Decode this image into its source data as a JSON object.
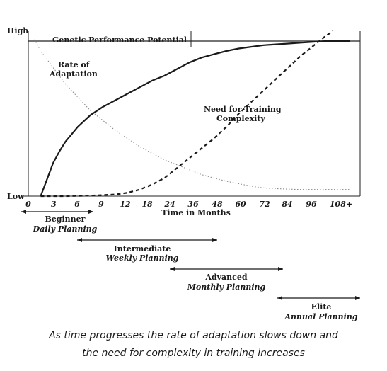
{
  "chart_data": {
    "type": "line",
    "y_axis": {
      "top_label": "High",
      "bottom_label": "Low"
    },
    "x_axis": {
      "label": "Time in Months",
      "ticks": [
        "0",
        "3",
        "6",
        "9",
        "12",
        "18",
        "24",
        "36",
        "48",
        "60",
        "72",
        "84",
        "96",
        "108+"
      ]
    },
    "reference_line": {
      "label": "Genetic Performance Potential",
      "level": 0.94
    },
    "series": [
      {
        "name": "Rate of Adaptation",
        "label_lines": [
          "Rate of",
          "Adaptation"
        ],
        "style": "solid",
        "points": [
          [
            1,
            0.0
          ],
          [
            1.5,
            0.1
          ],
          [
            2,
            0.2
          ],
          [
            2.5,
            0.27
          ],
          [
            3,
            0.33
          ],
          [
            4,
            0.42
          ],
          [
            5,
            0.49
          ],
          [
            6,
            0.54
          ],
          [
            7,
            0.58
          ],
          [
            8,
            0.62
          ],
          [
            9,
            0.66
          ],
          [
            10,
            0.7
          ],
          [
            11,
            0.73
          ],
          [
            12,
            0.77
          ],
          [
            13,
            0.81
          ],
          [
            14,
            0.84
          ],
          [
            15,
            0.86
          ],
          [
            16,
            0.88
          ],
          [
            17,
            0.895
          ],
          [
            18,
            0.905
          ],
          [
            19,
            0.915
          ],
          [
            20,
            0.92
          ],
          [
            21,
            0.925
          ],
          [
            22,
            0.93
          ],
          [
            23,
            0.935
          ],
          [
            24,
            0.94
          ],
          [
            25,
            0.94
          ],
          [
            26,
            0.94
          ]
        ]
      },
      {
        "name": "Need for Training Complexity",
        "label_lines": [
          "Need for Training",
          "Complexity"
        ],
        "style": "dashed",
        "points": [
          [
            1,
            0.0
          ],
          [
            3,
            0.0
          ],
          [
            5,
            0.003
          ],
          [
            7,
            0.01
          ],
          [
            8,
            0.02
          ],
          [
            9,
            0.04
          ],
          [
            10,
            0.07
          ],
          [
            11,
            0.11
          ],
          [
            12,
            0.17
          ],
          [
            13,
            0.23
          ],
          [
            14,
            0.29
          ],
          [
            15,
            0.35
          ],
          [
            16,
            0.42
          ],
          [
            17,
            0.5
          ],
          [
            18,
            0.57
          ],
          [
            19,
            0.64
          ],
          [
            20,
            0.71
          ],
          [
            21,
            0.78
          ],
          [
            22,
            0.85
          ],
          [
            23,
            0.91
          ],
          [
            24,
            0.97
          ],
          [
            24.6,
            1.0
          ]
        ]
      },
      {
        "name": "",
        "style": "dotted",
        "points": [
          [
            0.5,
            0.95
          ],
          [
            1,
            0.88
          ],
          [
            2,
            0.78
          ],
          [
            3,
            0.68
          ],
          [
            4,
            0.6
          ],
          [
            5,
            0.52
          ],
          [
            6,
            0.46
          ],
          [
            7,
            0.4
          ],
          [
            8,
            0.35
          ],
          [
            9,
            0.3
          ],
          [
            10,
            0.26
          ],
          [
            11,
            0.22
          ],
          [
            12,
            0.19
          ],
          [
            13,
            0.16
          ],
          [
            14,
            0.13
          ],
          [
            15,
            0.11
          ],
          [
            16,
            0.09
          ],
          [
            17,
            0.075
          ],
          [
            18,
            0.06
          ],
          [
            19,
            0.05
          ],
          [
            20,
            0.045
          ],
          [
            22,
            0.04
          ],
          [
            24,
            0.04
          ],
          [
            25,
            0.04
          ],
          [
            26,
            0.04
          ]
        ]
      }
    ],
    "phases": [
      {
        "name": "Beginner",
        "planning": "Daily Planning",
        "from": 0,
        "to": 9
      },
      {
        "name": "Intermediate",
        "planning": "Weekly Planning",
        "from": 6,
        "to": 48
      },
      {
        "name": "Advanced",
        "planning": "Monthly Planning",
        "from": 24,
        "to": 84
      },
      {
        "name": "Elite",
        "planning": "Annual Planning",
        "from": 84,
        "to": "108+"
      }
    ]
  },
  "caption": {
    "line1": "As time progresses the rate of adaptation slows down and",
    "line2": "the need for complexity in training increases"
  }
}
